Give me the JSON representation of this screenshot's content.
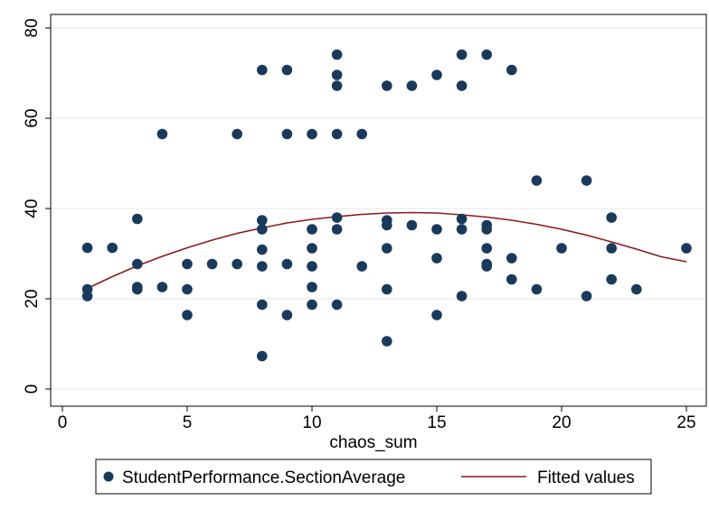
{
  "chart_data": {
    "type": "scatter",
    "xlabel": "chaos_sum",
    "ylabel": "",
    "xlim": [
      0,
      25
    ],
    "ylim": [
      0,
      80
    ],
    "xticks": [
      0,
      5,
      10,
      15,
      20,
      25
    ],
    "yticks": [
      0,
      20,
      40,
      60,
      80
    ],
    "grid": "horizontal",
    "legend_position": "bottom",
    "series": [
      {
        "name": "StudentPerformance.SectionAverage",
        "kind": "scatter",
        "color": "#1a3a5c",
        "points": [
          [
            1,
            31.3
          ],
          [
            1,
            22.1
          ],
          [
            1,
            20.6
          ],
          [
            2,
            31.3
          ],
          [
            3,
            37.7
          ],
          [
            3,
            27.7
          ],
          [
            3,
            22.6
          ],
          [
            3,
            22.1
          ],
          [
            4,
            56.5
          ],
          [
            4,
            22.6
          ],
          [
            5,
            27.7
          ],
          [
            5,
            22.1
          ],
          [
            5,
            16.4
          ],
          [
            6,
            27.7
          ],
          [
            7,
            56.5
          ],
          [
            7,
            27.7
          ],
          [
            8,
            70.7
          ],
          [
            8,
            37.4
          ],
          [
            8,
            35.4
          ],
          [
            8,
            30.9
          ],
          [
            8,
            27.2
          ],
          [
            8,
            18.7
          ],
          [
            8,
            7.3
          ],
          [
            9,
            70.7
          ],
          [
            9,
            56.5
          ],
          [
            9,
            27.7
          ],
          [
            9,
            16.4
          ],
          [
            10,
            56.5
          ],
          [
            10,
            35.4
          ],
          [
            10,
            31.2
          ],
          [
            10,
            27.2
          ],
          [
            10,
            22.6
          ],
          [
            10,
            18.7
          ],
          [
            11,
            74.1
          ],
          [
            11,
            69.6
          ],
          [
            11,
            67.2
          ],
          [
            11,
            56.5
          ],
          [
            11,
            38.0
          ],
          [
            11,
            35.4
          ],
          [
            11,
            18.7
          ],
          [
            12,
            56.5
          ],
          [
            12,
            27.2
          ],
          [
            13,
            67.2
          ],
          [
            13,
            37.4
          ],
          [
            13,
            36.3
          ],
          [
            13,
            31.2
          ],
          [
            13,
            22.1
          ],
          [
            13,
            10.6
          ],
          [
            14,
            67.2
          ],
          [
            14,
            36.3
          ],
          [
            15,
            69.6
          ],
          [
            15,
            35.4
          ],
          [
            15,
            29.0
          ],
          [
            15,
            16.4
          ],
          [
            16,
            74.1
          ],
          [
            16,
            67.2
          ],
          [
            16,
            37.7
          ],
          [
            16,
            35.4
          ],
          [
            16,
            20.6
          ],
          [
            17,
            74.1
          ],
          [
            17,
            36.3
          ],
          [
            17,
            35.4
          ],
          [
            17,
            31.2
          ],
          [
            17,
            27.7
          ],
          [
            17,
            27.2
          ],
          [
            18,
            70.7
          ],
          [
            18,
            29.0
          ],
          [
            18,
            24.3
          ],
          [
            19,
            46.2
          ],
          [
            19,
            22.1
          ],
          [
            20,
            31.2
          ],
          [
            21,
            46.2
          ],
          [
            21,
            20.6
          ],
          [
            22,
            38.0
          ],
          [
            22,
            31.2
          ],
          [
            22,
            24.3
          ],
          [
            23,
            22.1
          ],
          [
            25,
            31.2
          ]
        ]
      },
      {
        "name": "Fitted values",
        "kind": "line",
        "color": "#8b1a1a",
        "x": [
          1,
          2,
          3,
          4,
          5,
          6,
          7,
          8,
          9,
          10,
          11,
          12,
          13,
          14,
          15,
          16,
          17,
          18,
          19,
          20,
          21,
          22,
          23,
          24,
          25
        ],
        "y": [
          22.3,
          24.9,
          27.3,
          29.4,
          31.3,
          33.0,
          34.5,
          35.7,
          36.8,
          37.6,
          38.2,
          38.7,
          39.0,
          39.1,
          39.0,
          38.6,
          38.1,
          37.4,
          36.5,
          35.4,
          34.1,
          32.6,
          31.0,
          29.3,
          28.2
        ]
      }
    ]
  }
}
